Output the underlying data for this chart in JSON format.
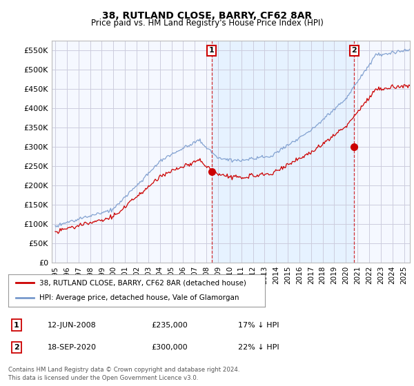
{
  "title": "38, RUTLAND CLOSE, BARRY, CF62 8AR",
  "subtitle": "Price paid vs. HM Land Registry's House Price Index (HPI)",
  "ylim": [
    0,
    575000
  ],
  "yticks": [
    0,
    50000,
    100000,
    150000,
    200000,
    250000,
    300000,
    350000,
    400000,
    450000,
    500000,
    550000
  ],
  "ytick_labels": [
    "£0",
    "£50K",
    "£100K",
    "£150K",
    "£200K",
    "£250K",
    "£300K",
    "£350K",
    "£400K",
    "£450K",
    "£500K",
    "£550K"
  ],
  "background_color": "#ffffff",
  "plot_bg_color": "#f5f8ff",
  "grid_color": "#ccccdd",
  "hpi_color": "#7799cc",
  "hpi_fill_color": "#ddeeff",
  "price_color": "#cc0000",
  "marker1_date": 2008.45,
  "marker2_date": 2020.72,
  "marker1_price": 235000,
  "marker2_price": 300000,
  "marker1_label": "1",
  "marker2_label": "2",
  "legend_line1": "38, RUTLAND CLOSE, BARRY, CF62 8AR (detached house)",
  "legend_line2": "HPI: Average price, detached house, Vale of Glamorgan",
  "note1_label": "1",
  "note1_date": "12-JUN-2008",
  "note1_price": "£235,000",
  "note1_hpi": "17% ↓ HPI",
  "note2_label": "2",
  "note2_date": "18-SEP-2020",
  "note2_price": "£300,000",
  "note2_hpi": "22% ↓ HPI",
  "footer": "Contains HM Land Registry data © Crown copyright and database right 2024.\nThis data is licensed under the Open Government Licence v3.0.",
  "xmin": 1994.7,
  "xmax": 2025.5
}
